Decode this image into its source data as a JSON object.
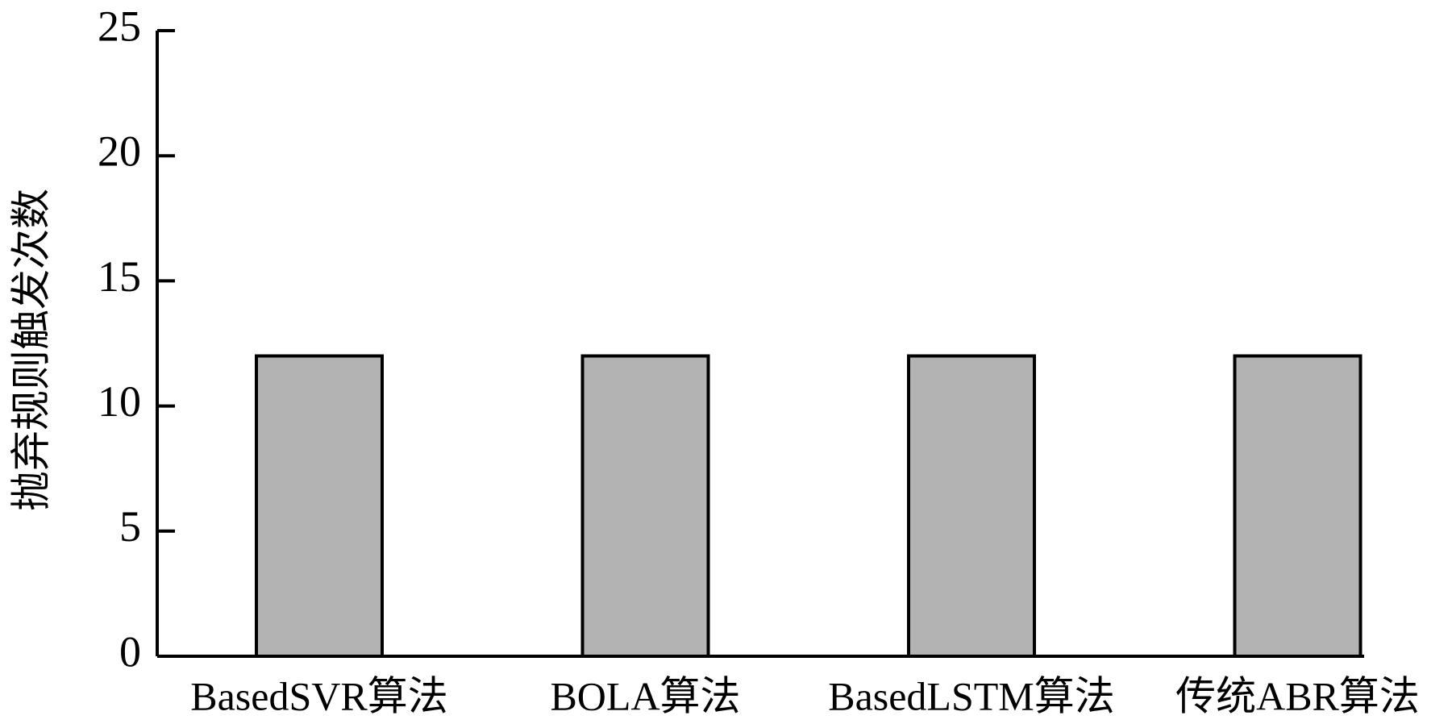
{
  "chart_data": {
    "type": "bar",
    "ylabel": "抛弃规则触发次数",
    "categories": [
      "BasedSVR算法",
      "BOLA算法",
      "BasedLSTM算法",
      "传统ABR算法"
    ],
    "values": [
      12,
      12,
      12,
      12
    ],
    "color": "#b3b3b3",
    "ylim": [
      0,
      25
    ],
    "yticks": [
      0,
      5,
      10,
      15,
      20,
      25
    ]
  }
}
